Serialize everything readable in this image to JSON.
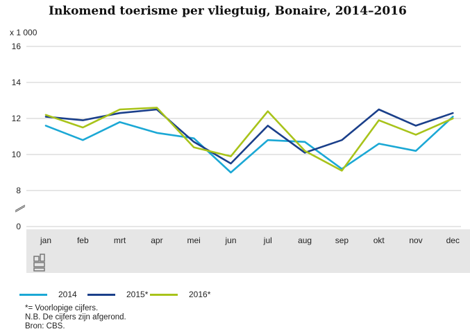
{
  "title": "Inkomend toerisme per vliegtuig, Bonaire, 2014–2016",
  "unit_label": "x 1 000",
  "notes": [
    "*= Voorlopige cijfers.",
    "N.B. De cijfers zijn afgerond.",
    "Bron: CBS."
  ],
  "logo_icon": "cbs-logo-icon",
  "colors": {
    "2014": "#1ba8d5",
    "2015*": "#1a3f8a",
    "2016*": "#a8c31a",
    "grid": "#cccccc",
    "band": "#e6e6e6"
  },
  "chart_data": {
    "type": "line",
    "title": "Inkomend toerisme per vliegtuig, Bonaire, 2014–2016",
    "ylabel": "x 1 000",
    "xlabel": "",
    "categories": [
      "jan",
      "feb",
      "mrt",
      "apr",
      "mei",
      "jun",
      "jul",
      "aug",
      "sep",
      "okt",
      "nov",
      "dec"
    ],
    "y_ticks": [
      0,
      8,
      10,
      12,
      14,
      16
    ],
    "ylim": [
      8,
      16
    ],
    "axis_break": true,
    "grid": true,
    "legend_position": "bottom",
    "series": [
      {
        "name": "2014",
        "color": "#1ba8d5",
        "values": [
          11.6,
          10.8,
          11.8,
          11.2,
          10.9,
          9.0,
          10.8,
          10.7,
          9.2,
          10.6,
          10.2,
          12.1
        ]
      },
      {
        "name": "2015*",
        "color": "#1a3f8a",
        "values": [
          12.1,
          11.9,
          12.3,
          12.5,
          10.7,
          9.5,
          11.6,
          10.1,
          10.8,
          12.5,
          11.6,
          12.3
        ]
      },
      {
        "name": "2016*",
        "color": "#a8c31a",
        "values": [
          12.2,
          11.5,
          12.5,
          12.6,
          10.4,
          9.9,
          12.4,
          10.2,
          9.1,
          11.9,
          11.1,
          12.0
        ]
      }
    ]
  }
}
